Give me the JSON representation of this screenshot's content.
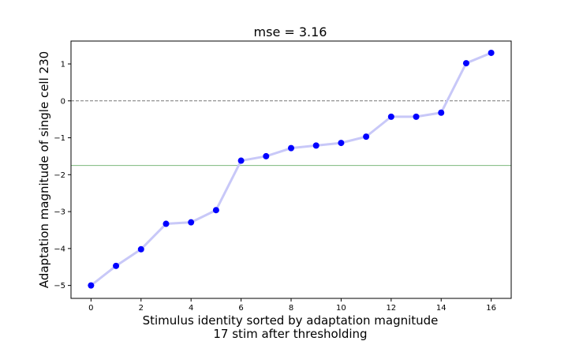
{
  "chart_data": {
    "type": "line",
    "title": "mse = 3.16",
    "xlabel_line1": "Stimulus identity sorted by adaptation magnitude",
    "xlabel_line2": "17 stim after thresholding",
    "ylabel": "Adaptation magnitude of single cell 230",
    "xlim": [
      -0.8,
      16.8
    ],
    "ylim": [
      -5.35,
      1.62
    ],
    "x_ticks": [
      0,
      2,
      4,
      6,
      8,
      10,
      12,
      14,
      16
    ],
    "y_ticks": [
      -5,
      -4,
      -3,
      -2,
      -1,
      0,
      1
    ],
    "x": [
      0,
      1,
      2,
      3,
      4,
      5,
      6,
      7,
      8,
      9,
      10,
      11,
      12,
      13,
      14,
      15,
      16
    ],
    "values": [
      -5.0,
      -4.47,
      -4.02,
      -3.33,
      -3.29,
      -2.96,
      -1.62,
      -1.5,
      -1.28,
      -1.21,
      -1.14,
      -0.97,
      -0.43,
      -0.43,
      -0.32,
      1.02,
      1.3
    ],
    "reference_lines": {
      "zero_line": 0,
      "threshold_line": -1.75
    },
    "colors": {
      "line": "#c8c8f8",
      "marker": "#0000ff",
      "zero_line": "#777777",
      "threshold_line": "#7db87d"
    },
    "grid": false
  }
}
